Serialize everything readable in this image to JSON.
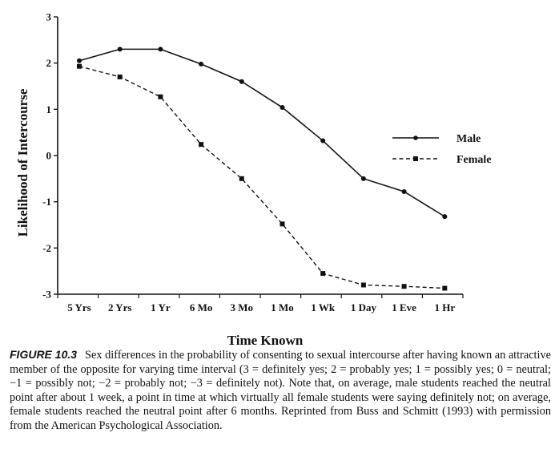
{
  "chart_data": {
    "type": "line",
    "title": "",
    "xlabel": "Time Known",
    "ylabel": "Likelihood of Intercourse",
    "categories": [
      "5 Yrs",
      "2 Yrs",
      "1 Yr",
      "6 Mo",
      "3 Mo",
      "1 Mo",
      "1 Wk",
      "1 Day",
      "1 Eve",
      "1 Hr"
    ],
    "ylim": [
      -3,
      3
    ],
    "yticks": [
      "3",
      "2",
      "1",
      "0",
      "-1",
      "-2",
      "-3"
    ],
    "grid": false,
    "legend_position": "right",
    "series": [
      {
        "name": "Male",
        "style": "solid",
        "marker": "circle",
        "values": [
          2.05,
          2.3,
          2.3,
          1.98,
          1.6,
          1.04,
          0.32,
          -0.5,
          -0.78,
          -1.32
        ]
      },
      {
        "name": "Female",
        "style": "dashed",
        "marker": "square",
        "values": [
          1.93,
          1.7,
          1.27,
          0.24,
          -0.5,
          -1.48,
          -2.55,
          -2.8,
          -2.83,
          -2.87
        ]
      }
    ]
  },
  "caption": {
    "label": "FIGURE 10.3",
    "text": "Sex differences in the probability of consenting to sexual intercourse after having known an attractive member of the opposite for varying time interval (3 = definitely yes; 2 = probably yes; 1 = possibly yes; 0 = neutral; −1 = possibly not; −2 = probably not; −3 = definitely not). Note that, on average, male students reached the neutral point after about 1 week, a point in time at which virtually all female students were saying definitely not; on average, female students reached the neutral point after 6 months. Reprinted from Buss and Schmitt (1993) with permission from the American Psychological Association."
  }
}
